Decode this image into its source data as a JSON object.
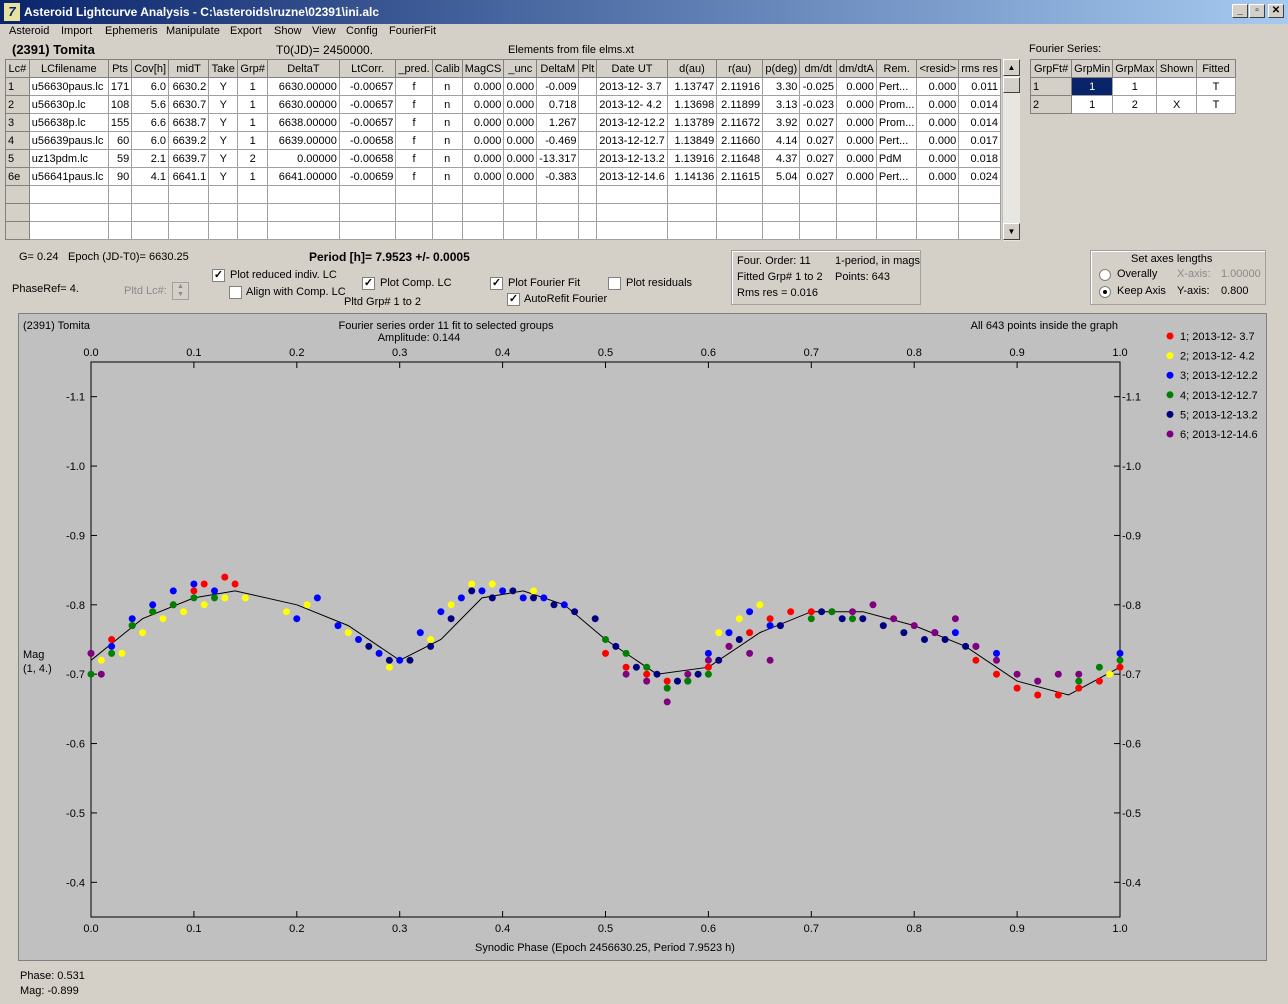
{
  "window": {
    "title": "Asteroid Lightcurve Analysis - C:\\asteroids\\ruzne\\02391\\ini.alc",
    "icon": "lightcurve-app-icon",
    "min_label": "_",
    "max_label": "▫",
    "close_label": "✕"
  },
  "menu": [
    "Asteroid",
    "Import",
    "Ephemeris",
    "Manipulate",
    "Export",
    "Show",
    "View",
    "Config",
    "FourierFit"
  ],
  "header": {
    "asteroid": "(2391) Tomita",
    "t0": "T0(JD)= 2450000.",
    "elements": "Elements from file elms.xt",
    "fourier_series_label": "Fourier Series:"
  },
  "lc_table": {
    "columns": [
      "Lc#",
      "LCfilename",
      "Pts",
      "Cov[h]",
      "midT",
      "Take",
      "Grp#",
      "DeltaT",
      "LtCorr.",
      "_pred.",
      "Calib",
      "MagCS",
      "_unc",
      "DeltaM",
      "Plt",
      "Date UT",
      "d(au)",
      "r(au)",
      "p(deg)",
      "dm/dt",
      "dm/dtA",
      "Rem.",
      "<resid>",
      "rms res"
    ],
    "rows": [
      [
        "1",
        "u56630paus.lc",
        "171",
        "6.0",
        "6630.2",
        "Y",
        "1",
        "6630.00000",
        "-0.00657",
        "f",
        "n",
        "0.000",
        "0.000",
        "-0.009",
        "",
        "2013-12- 3.7",
        "1.13747",
        "2.11916",
        "3.30",
        "-0.025",
        "0.000",
        "Pert...",
        "0.000",
        "0.011"
      ],
      [
        "2",
        "u56630p.lc",
        "108",
        "5.6",
        "6630.7",
        "Y",
        "1",
        "6630.00000",
        "-0.00657",
        "f",
        "n",
        "0.000",
        "0.000",
        "0.718",
        "",
        "2013-12- 4.2",
        "1.13698",
        "2.11899",
        "3.13",
        "-0.023",
        "0.000",
        "Prom...",
        "0.000",
        "0.014"
      ],
      [
        "3",
        "u56638p.lc",
        "155",
        "6.6",
        "6638.7",
        "Y",
        "1",
        "6638.00000",
        "-0.00657",
        "f",
        "n",
        "0.000",
        "0.000",
        "1.267",
        "",
        "2013-12-12.2",
        "1.13789",
        "2.11672",
        "3.92",
        "0.027",
        "0.000",
        "Prom...",
        "0.000",
        "0.014"
      ],
      [
        "4",
        "u56639paus.lc",
        "60",
        "6.0",
        "6639.2",
        "Y",
        "1",
        "6639.00000",
        "-0.00658",
        "f",
        "n",
        "0.000",
        "0.000",
        "-0.469",
        "",
        "2013-12-12.7",
        "1.13849",
        "2.11660",
        "4.14",
        "0.027",
        "0.000",
        "Pert...",
        "0.000",
        "0.017"
      ],
      [
        "5",
        "uz13pdm.lc",
        "59",
        "2.1",
        "6639.7",
        "Y",
        "2",
        "0.00000",
        "-0.00658",
        "f",
        "n",
        "0.000",
        "0.000",
        "-13.317",
        "",
        "2013-12-13.2",
        "1.13916",
        "2.11648",
        "4.37",
        "0.027",
        "0.000",
        "PdM",
        "0.000",
        "0.018"
      ],
      [
        "6e",
        "u56641paus.lc",
        "90",
        "4.1",
        "6641.1",
        "Y",
        "1",
        "6641.00000",
        "-0.00659",
        "f",
        "n",
        "0.000",
        "0.000",
        "-0.383",
        "",
        "2013-12-14.6",
        "1.14136",
        "2.11615",
        "5.04",
        "0.027",
        "0.000",
        "Pert...",
        "0.000",
        "0.024"
      ]
    ],
    "empty_rows": 3,
    "scroll_up": "▲",
    "scroll_down": "▼"
  },
  "fourier_table": {
    "columns": [
      "GrpFt#",
      "GrpMin",
      "GrpMax",
      "Shown",
      "Fitted"
    ],
    "rows": [
      [
        "1",
        "1",
        "1",
        "",
        "T"
      ],
      [
        "2",
        "1",
        "2",
        "X",
        "T"
      ]
    ]
  },
  "info": {
    "g": "G= 0.24",
    "epoch": "Epoch (JD-T0)= 6630.25",
    "period": "Period [h]= 7.9523 +/- 0.0005",
    "phaseref": "PhaseRef= 4.",
    "pltd_lc": "Pltd Lc#:",
    "pltd_grp": "Pltd Grp#  1   to   2"
  },
  "checks": [
    {
      "label": "Plot reduced indiv. LC",
      "checked": true
    },
    {
      "label": "Align with Comp. LC",
      "checked": false
    },
    {
      "label": "Plot Comp. LC",
      "checked": true
    },
    {
      "label": "Plot Fourier Fit",
      "checked": true
    },
    {
      "label": "AutoRefit Fourier",
      "checked": true
    },
    {
      "label": "Plot residuals",
      "checked": false
    }
  ],
  "fourier_box": {
    "order": "Four. Order: 11",
    "period_mode": "1-period, in mags",
    "fitted": "Fitted Grp# 1 to 2",
    "points": "Points: 643",
    "rms": "Rms res     = 0.016"
  },
  "axes_box": {
    "title": "Set axes lengths",
    "overall": "Overally",
    "keep": "Keep Axis",
    "xaxis_label": "X-axis:",
    "xaxis_value": "1.00000",
    "yaxis_label": "Y-axis:",
    "yaxis_value": "0.800"
  },
  "plot": {
    "name": "(2391) Tomita",
    "title": "Fourier series order 11 fit to selected groups",
    "amplitude": "Amplitude: 0.144",
    "inside": "All 643 points inside the graph",
    "ylabel1": "Mag",
    "ylabel2": "(1, 4.)",
    "xlabel": "Synodic Phase (Epoch 2456630.25, Period 7.9523 h)"
  },
  "status": {
    "phase": "Phase:  0.531",
    "mag": "Mag:    -0.899"
  },
  "chart_data": {
    "type": "scatter",
    "x_ticks": [
      "0.0",
      "0.1",
      "0.2",
      "0.3",
      "0.4",
      "0.5",
      "0.6",
      "0.7",
      "0.8",
      "0.9",
      "1.0"
    ],
    "y_ticks": [
      "-1.1",
      "-1.0",
      "-0.9",
      "-0.8",
      "-0.7",
      "-0.6",
      "-0.5",
      "-0.4"
    ],
    "xlim": [
      0,
      1
    ],
    "ylim": [
      -1.15,
      -0.35
    ],
    "y_inverted": true,
    "legend_position": "right",
    "series": [
      {
        "name": "1; 2013-12- 3.7",
        "color": "#ff0000",
        "x": [
          0.0,
          0.02,
          0.04,
          0.06,
          0.08,
          0.1,
          0.11,
          0.13,
          0.14,
          0.5,
          0.52,
          0.54,
          0.56,
          0.58,
          0.6,
          0.62,
          0.64,
          0.66,
          0.68,
          0.7,
          0.72,
          0.86,
          0.88,
          0.9,
          0.92,
          0.94,
          0.96,
          0.98,
          1.0
        ],
        "y": [
          -0.73,
          -0.75,
          -0.77,
          -0.79,
          -0.8,
          -0.82,
          -0.83,
          -0.84,
          -0.83,
          -0.73,
          -0.71,
          -0.7,
          -0.69,
          -0.69,
          -0.71,
          -0.74,
          -0.76,
          -0.78,
          -0.79,
          -0.79,
          -0.79,
          -0.72,
          -0.7,
          -0.68,
          -0.67,
          -0.67,
          -0.68,
          -0.69,
          -0.71
        ]
      },
      {
        "name": "2; 2013-12- 4.2",
        "color": "#ffff00",
        "x": [
          0.01,
          0.03,
          0.05,
          0.07,
          0.09,
          0.11,
          0.13,
          0.15,
          0.19,
          0.21,
          0.25,
          0.27,
          0.29,
          0.31,
          0.33,
          0.35,
          0.37,
          0.39,
          0.41,
          0.43,
          0.61,
          0.63,
          0.65,
          0.99
        ],
        "y": [
          -0.72,
          -0.73,
          -0.76,
          -0.78,
          -0.79,
          -0.8,
          -0.81,
          -0.81,
          -0.79,
          -0.8,
          -0.76,
          -0.74,
          -0.71,
          -0.72,
          -0.75,
          -0.8,
          -0.83,
          -0.83,
          -0.82,
          -0.82,
          -0.76,
          -0.78,
          -0.8,
          -0.7
        ]
      },
      {
        "name": "3; 2013-12-12.2",
        "color": "#0000ff",
        "x": [
          0.02,
          0.04,
          0.06,
          0.08,
          0.1,
          0.12,
          0.2,
          0.22,
          0.24,
          0.26,
          0.28,
          0.3,
          0.32,
          0.34,
          0.36,
          0.38,
          0.4,
          0.42,
          0.44,
          0.46,
          0.6,
          0.62,
          0.64,
          0.66,
          0.82,
          0.84,
          0.86,
          0.88,
          1.0
        ],
        "y": [
          -0.74,
          -0.78,
          -0.8,
          -0.82,
          -0.83,
          -0.82,
          -0.78,
          -0.81,
          -0.77,
          -0.75,
          -0.73,
          -0.72,
          -0.76,
          -0.79,
          -0.81,
          -0.82,
          -0.82,
          -0.81,
          -0.81,
          -0.8,
          -0.73,
          -0.76,
          -0.79,
          -0.77,
          -0.76,
          -0.76,
          -0.74,
          -0.73,
          -0.73
        ]
      },
      {
        "name": "4; 2013-12-12.7",
        "color": "#008000",
        "x": [
          0.0,
          0.02,
          0.04,
          0.06,
          0.08,
          0.1,
          0.12,
          0.5,
          0.52,
          0.54,
          0.56,
          0.58,
          0.6,
          0.7,
          0.72,
          0.74,
          0.96,
          0.98,
          1.0
        ],
        "y": [
          -0.7,
          -0.73,
          -0.77,
          -0.79,
          -0.8,
          -0.81,
          -0.81,
          -0.75,
          -0.73,
          -0.71,
          -0.68,
          -0.69,
          -0.7,
          -0.78,
          -0.79,
          -0.78,
          -0.69,
          -0.71,
          -0.72
        ]
      },
      {
        "name": "5; 2013-12-13.2",
        "color": "#000080",
        "x": [
          0.27,
          0.29,
          0.31,
          0.33,
          0.35,
          0.37,
          0.39,
          0.41,
          0.43,
          0.45,
          0.47,
          0.49,
          0.51,
          0.53,
          0.55,
          0.57,
          0.59,
          0.61,
          0.63,
          0.67,
          0.71,
          0.73,
          0.75,
          0.77,
          0.79,
          0.81,
          0.83,
          0.85
        ],
        "y": [
          -0.74,
          -0.72,
          -0.72,
          -0.74,
          -0.78,
          -0.82,
          -0.81,
          -0.82,
          -0.81,
          -0.8,
          -0.79,
          -0.78,
          -0.74,
          -0.71,
          -0.7,
          -0.69,
          -0.7,
          -0.72,
          -0.75,
          -0.77,
          -0.79,
          -0.78,
          -0.78,
          -0.77,
          -0.76,
          -0.75,
          -0.75,
          -0.74
        ]
      },
      {
        "name": "6; 2013-12-14.6",
        "color": "#800080",
        "x": [
          0.0,
          0.01,
          0.52,
          0.54,
          0.56,
          0.58,
          0.6,
          0.62,
          0.64,
          0.66,
          0.74,
          0.76,
          0.78,
          0.8,
          0.82,
          0.84,
          0.86,
          0.88,
          0.9,
          0.92,
          0.94,
          0.96
        ],
        "y": [
          -0.73,
          -0.7,
          -0.7,
          -0.69,
          -0.66,
          -0.7,
          -0.72,
          -0.74,
          -0.73,
          -0.72,
          -0.79,
          -0.8,
          -0.78,
          -0.77,
          -0.76,
          -0.78,
          -0.74,
          -0.72,
          -0.7,
          -0.69,
          -0.7,
          -0.7
        ]
      }
    ],
    "fit": {
      "x": [
        0.0,
        0.05,
        0.1,
        0.14,
        0.2,
        0.25,
        0.3,
        0.34,
        0.38,
        0.42,
        0.46,
        0.5,
        0.55,
        0.6,
        0.65,
        0.7,
        0.75,
        0.8,
        0.85,
        0.9,
        0.95,
        1.0
      ],
      "y": [
        -0.72,
        -0.78,
        -0.81,
        -0.82,
        -0.8,
        -0.77,
        -0.72,
        -0.75,
        -0.81,
        -0.82,
        -0.8,
        -0.75,
        -0.7,
        -0.71,
        -0.76,
        -0.79,
        -0.79,
        -0.77,
        -0.74,
        -0.69,
        -0.67,
        -0.71
      ]
    }
  }
}
